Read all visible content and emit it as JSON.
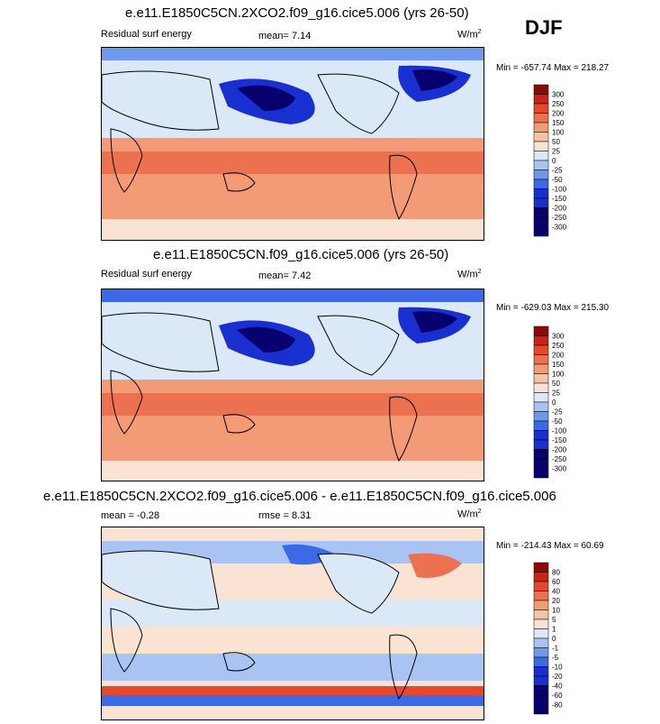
{
  "season": "DJF",
  "colors": {
    "neg4": "#08006e",
    "neg3": "#1a2fd0",
    "neg2": "#3a6ae6",
    "neg1": "#6f98ec",
    "neg0": "#a9c3f2",
    "negLight": "#dbe8f8",
    "posLight": "#fbe3d3",
    "pos1": "#f8c2a4",
    "pos2": "#f39a77",
    "pos3": "#ec7150",
    "pos4": "#e4482d",
    "pos5": "#c92218",
    "pos6": "#8c0a08",
    "land": "#000000"
  },
  "chart_data": [
    {
      "type": "heatmap",
      "title": "e.e11.E1850C5CN.2XCO2.f09_g16.cice5.006 (yrs 26-50)",
      "left_label": "Residual surf energy",
      "mean_text": "mean=   7.14",
      "units": "W/m",
      "units_sup": "2",
      "min_max": "Min = -657.74 Max = 218.27",
      "colorbar_levels": [
        "300",
        "250",
        "200",
        "150",
        "100",
        "50",
        "25",
        "0",
        "-25",
        "-50",
        "-100",
        "-150",
        "-200",
        "-250",
        "-300"
      ]
    },
    {
      "type": "heatmap",
      "title": "e.e11.E1850C5CN.f09_g16.cice5.006 (yrs 26-50)",
      "left_label": "Residual surf energy",
      "mean_text": "mean=   7.42",
      "units": "W/m",
      "units_sup": "2",
      "min_max": "Min = -629.03 Max = 215.30",
      "colorbar_levels": [
        "300",
        "250",
        "200",
        "150",
        "100",
        "50",
        "25",
        "0",
        "-25",
        "-50",
        "-100",
        "-150",
        "-200",
        "-250",
        "-300"
      ]
    },
    {
      "type": "heatmap",
      "title": "e.e11.E1850C5CN.2XCO2.f09_g16.cice5.006 - e.e11.E1850C5CN.f09_g16.cice5.006",
      "left_label": "mean =  -0.28",
      "mean_text": "rmse =   8.31",
      "units": "W/m",
      "units_sup": "2",
      "min_max": "Min = -214.43 Max = 60.69",
      "colorbar_levels": [
        "80",
        "60",
        "40",
        "20",
        "10",
        "5",
        "1",
        "0",
        "-1",
        "-5",
        "-10",
        "-20",
        "-40",
        "-60",
        "-80"
      ]
    }
  ]
}
